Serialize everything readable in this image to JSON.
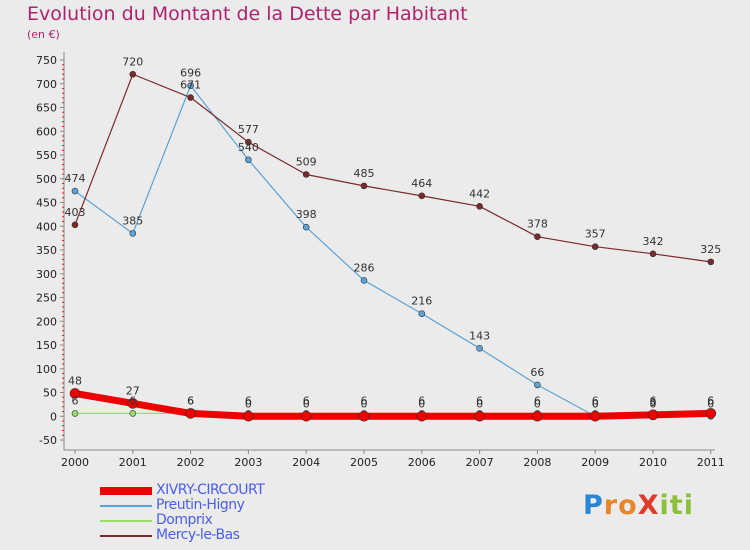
{
  "title": "Evolution du Montant de la Dette par Habitant",
  "subtitle": "(en €)",
  "logo": {
    "letters": [
      {
        "ch": "P",
        "color": "#2a86d4"
      },
      {
        "ch": "r",
        "color": "#e8862a"
      },
      {
        "ch": "o",
        "color": "#e8862a"
      },
      {
        "ch": "X",
        "color": "#e03a2a"
      },
      {
        "ch": "i",
        "color": "#8cbf3a"
      },
      {
        "ch": "t",
        "color": "#8cbf3a"
      },
      {
        "ch": "i",
        "color": "#8cbf3a"
      }
    ]
  },
  "chart_data": {
    "type": "line",
    "title": "Evolution du Montant de la Dette par Habitant",
    "subtitle": "(en €)",
    "x": [
      "2000",
      "2001",
      "2002",
      "2003",
      "2004",
      "2005",
      "2006",
      "2007",
      "2008",
      "2009",
      "2010",
      "2011"
    ],
    "ylim": [
      -50,
      750
    ],
    "yticks": [
      -50,
      0,
      50,
      100,
      150,
      200,
      250,
      300,
      350,
      400,
      450,
      500,
      550,
      600,
      650,
      700,
      750
    ],
    "grid": false,
    "legend_position": "bottom-left",
    "series": [
      {
        "name": "XIVRY-CIRCOURT",
        "color": "#ee0000",
        "values": [
          48,
          27,
          6,
          0,
          0,
          0,
          0,
          0,
          0,
          0,
          3,
          6
        ]
      },
      {
        "name": "Preutin-Higny",
        "color": "#5ba3d9",
        "values": [
          474,
          385,
          696,
          540,
          398,
          286,
          216,
          143,
          66,
          0,
          0,
          0
        ]
      },
      {
        "name": "Domprix",
        "color": "#99dd66",
        "values": [
          6,
          6,
          6,
          6,
          6,
          6,
          6,
          6,
          6,
          6,
          6,
          6
        ]
      },
      {
        "name": "Mercy-le-Bas",
        "color": "#7a2a2a",
        "values": [
          403,
          720,
          671,
          577,
          509,
          485,
          464,
          442,
          378,
          357,
          342,
          325
        ]
      }
    ],
    "data_labels": [
      {
        "series": 0,
        "values": [
          "48",
          "27",
          "6",
          "0",
          "0",
          "0",
          "0",
          "0",
          "0",
          "0",
          "3",
          "6"
        ]
      },
      {
        "series": 1,
        "values": [
          "474",
          "385",
          "696",
          "540",
          "398",
          "286",
          "216",
          "143",
          "66",
          "0",
          "0",
          "0"
        ]
      },
      {
        "series": 2,
        "values": [
          "6",
          "6",
          "6",
          "6",
          "6",
          "6",
          "6",
          "6",
          "6",
          "6",
          "6",
          "6"
        ]
      },
      {
        "series": 3,
        "values": [
          "403",
          "720",
          "671",
          "577",
          "509",
          "485",
          "464",
          "442",
          "378",
          "357",
          "342",
          "325"
        ]
      }
    ]
  }
}
